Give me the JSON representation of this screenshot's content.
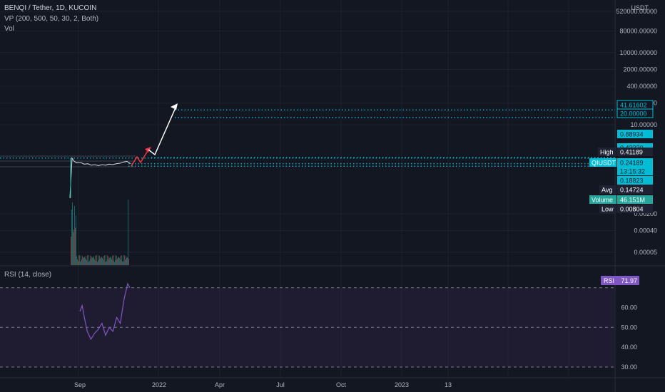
{
  "header": {
    "symbol": "BENQI / Tether, 1D, KUCOIN",
    "vp": "VP (200, 500, 50, 30, 2, Both)",
    "vol": "Vol",
    "currency": "USDT"
  },
  "price_axis": {
    "ticks": [
      "520000.00000",
      "80000.00000",
      "10000.00000",
      "2000.00000",
      "400.00000",
      "80.00000",
      "10.00000",
      "0.00200",
      "0.00040",
      "0.00005"
    ]
  },
  "rsi_panel": {
    "title": "RSI (14, close)",
    "ticks": [
      "60.00",
      "50.00",
      "40.00",
      "30.00"
    ],
    "badge_label": "RSI",
    "badge_value": "71.97"
  },
  "time_axis": {
    "labels": [
      "Sep",
      "2022",
      "Apr",
      "Jul",
      "Oct",
      "2023",
      "13"
    ]
  },
  "price_tags": [
    {
      "label": "",
      "value": "41.61602",
      "style": "outline"
    },
    {
      "label": "",
      "value": "20.00000",
      "style": "outline"
    },
    {
      "label": "",
      "value": "0.88934",
      "style": "fill"
    },
    {
      "label": "",
      "value": "0.43330",
      "style": "fill"
    },
    {
      "label": "High",
      "value": "0.41189",
      "style": "dark"
    },
    {
      "label": "QIUSDT",
      "value": "0.24189",
      "style": "fill"
    },
    {
      "label": "",
      "value": "13:15:32",
      "style": "fill"
    },
    {
      "label": "",
      "value": "0.18823",
      "style": "fill"
    },
    {
      "label": "Avg",
      "value": "0.14724",
      "style": "dark"
    },
    {
      "label": "Volume",
      "value": "46.151M",
      "style": "green"
    },
    {
      "label": "Low",
      "value": "0.00804",
      "style": "dark"
    }
  ],
  "colors": {
    "background": "#131722",
    "grid": "#1e222d",
    "cyan": "#00bcd4",
    "teal": "#26a69a",
    "rsi": "#7e57c2",
    "rsi_band": "#2a2040",
    "arrow_red": "#f23645",
    "arrow_white": "#ffffff",
    "dark_tag": "#1e2233"
  },
  "chart_data": {
    "type": "line",
    "series": [
      {
        "x": [
          0,
          3,
          6,
          10,
          15,
          20,
          25,
          30,
          35,
          40,
          45,
          50,
          55,
          60,
          65,
          70,
          75,
          80,
          85
        ],
        "y": [
          0.009,
          0.41,
          0.3,
          0.26,
          0.27,
          0.23,
          0.24,
          0.21,
          0.22,
          0.2,
          0.22,
          0.21,
          0.23,
          0.22,
          0.24,
          0.25,
          0.28,
          0.3,
          0.242
        ]
      }
    ],
    "rsi": {
      "x": [
        0,
        3,
        6,
        10,
        15,
        20,
        25,
        30,
        35,
        40,
        45,
        50,
        55,
        60,
        65,
        68
      ],
      "y": [
        58,
        61,
        55,
        48,
        44,
        47,
        49,
        52,
        46,
        50,
        48,
        55,
        52,
        64,
        72,
        70
      ]
    },
    "levels": [
      41.61602,
      20.0,
      0.4333,
      0.41189,
      0.24189,
      0.18823
    ],
    "ylim_rsi": [
      30,
      72
    ],
    "grid": true
  }
}
